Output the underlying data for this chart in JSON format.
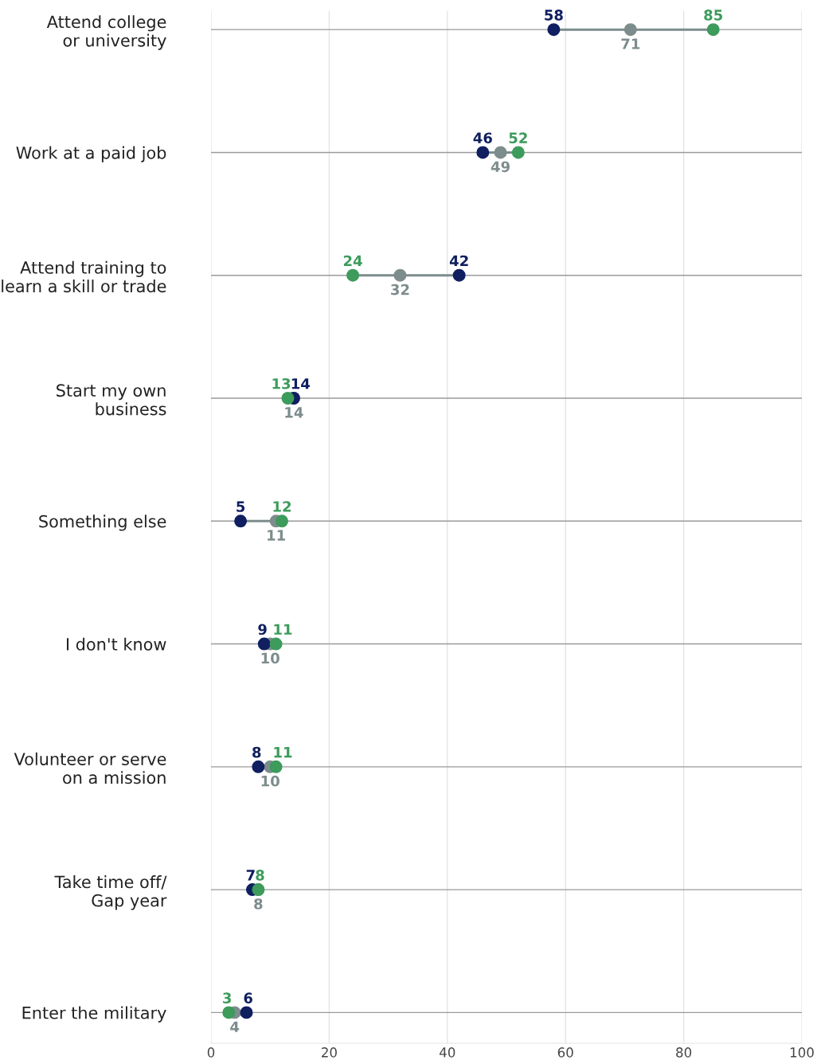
{
  "chart_data": {
    "type": "scatter",
    "orientation": "horizontal",
    "categories": [
      "Attend college\nor university",
      "Work at a paid job",
      "Attend training to\nlearn a skill or trade",
      "Start my own\nbusiness",
      "Something else",
      "I don't know",
      "Volunteer or serve\non a mission",
      "Take time off/\nGap year",
      "Enter the military"
    ],
    "series": [
      {
        "color": "#0f1f5f",
        "values": [
          58,
          46,
          42,
          14,
          5,
          9,
          8,
          7,
          6
        ]
      },
      {
        "color": "#7d8c8c",
        "values": [
          71,
          49,
          32,
          14,
          11,
          10,
          10,
          8,
          4
        ]
      },
      {
        "color": "#3d9b5b",
        "values": [
          85,
          52,
          24,
          13,
          12,
          11,
          11,
          8,
          3
        ]
      }
    ],
    "xlim": [
      0,
      100
    ],
    "xticks": [
      0,
      20,
      40,
      60,
      80,
      100
    ],
    "grid": "x",
    "marker": "circle",
    "data_labels": true,
    "legend": false
  }
}
